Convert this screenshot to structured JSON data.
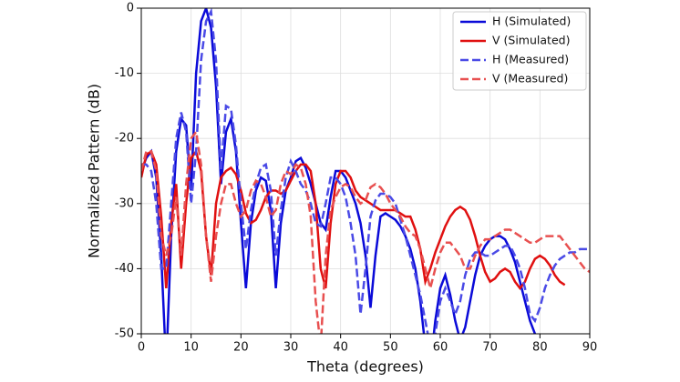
{
  "chart_data": {
    "type": "line",
    "xlabel": "Theta (degrees)",
    "ylabel": "Normalized Pattern (dB)",
    "x": [
      0,
      1,
      2,
      3,
      4,
      5,
      6,
      7,
      8,
      9,
      10,
      11,
      12,
      13,
      14,
      15,
      16,
      17,
      18,
      19,
      20,
      21,
      22,
      23,
      24,
      25,
      26,
      27,
      28,
      29,
      30,
      31,
      32,
      33,
      34,
      35,
      36,
      37,
      38,
      39,
      40,
      41,
      42,
      43,
      44,
      45,
      46,
      47,
      48,
      49,
      50,
      51,
      52,
      53,
      54,
      55,
      56,
      57,
      58,
      59,
      60,
      61,
      62,
      63,
      64,
      65,
      66,
      67,
      68,
      69,
      70,
      71,
      72,
      73,
      74,
      75,
      76,
      77,
      78,
      79,
      80,
      81,
      82,
      83,
      84,
      85,
      86,
      87,
      88,
      89,
      90
    ],
    "xlim": [
      0,
      90
    ],
    "xticks": [
      0,
      10,
      20,
      30,
      40,
      50,
      60,
      70,
      80,
      90
    ],
    "ylim": [
      -50,
      0
    ],
    "yticks": [
      -50,
      -40,
      -30,
      -20,
      -10,
      0
    ],
    "grid": true,
    "legend": "upper right",
    "series": [
      {
        "name": "H (Simulated)",
        "color": "#0a0ad8",
        "dash": "solid",
        "values": [
          -25,
          -23,
          -22,
          -26,
          -38,
          -55,
          -35,
          -22,
          -17,
          -18,
          -28,
          -10,
          -2,
          0,
          -3,
          -12,
          -27,
          -19,
          -17,
          -22,
          -33,
          -43,
          -33,
          -28,
          -26,
          -26.5,
          -31,
          -43,
          -33,
          -28,
          -26,
          -23.5,
          -23,
          -24.5,
          -27,
          -30,
          -33,
          -34,
          -29,
          -25,
          -25,
          -26,
          -28,
          -30,
          -33,
          -38,
          -46,
          -38,
          -32,
          -31.5,
          -32,
          -32.5,
          -33.5,
          -35,
          -37,
          -40,
          -45,
          -52,
          -55,
          -48,
          -43,
          -41,
          -44,
          -48,
          -51,
          -49,
          -45,
          -41,
          -38,
          -36.5,
          -35.5,
          -35,
          -35,
          -35.5,
          -37,
          -39,
          -42,
          -45,
          -48,
          -50,
          -52,
          null,
          null,
          null,
          null,
          null,
          null,
          null,
          null,
          null,
          null
        ]
      },
      {
        "name": "V (Simulated)",
        "color": "#e01010",
        "dash": "solid",
        "values": [
          -26,
          -22.5,
          -22,
          -24,
          -32,
          -43,
          -33,
          -27,
          -40,
          -30,
          -23,
          -22,
          -25,
          -35,
          -41,
          -30,
          -26,
          -25,
          -24.5,
          -25.5,
          -28,
          -31.5,
          -33,
          -32.5,
          -31,
          -29,
          -28,
          -28,
          -28.5,
          -28,
          -26.5,
          -25,
          -24,
          -24,
          -25,
          -30,
          -40,
          -43,
          -33,
          -27,
          -25,
          -25,
          -26,
          -28,
          -29,
          -29.5,
          -30,
          -30.5,
          -31,
          -31,
          -31,
          -31,
          -31.5,
          -32,
          -32,
          -34,
          -37,
          -42,
          -40,
          -37.5,
          -35.5,
          -33.5,
          -32,
          -31,
          -30.5,
          -31,
          -32.5,
          -35,
          -38,
          -40.5,
          -42,
          -41.5,
          -40.5,
          -40,
          -40.5,
          -42,
          -43,
          -42,
          -40,
          -38.5,
          -38,
          -38.5,
          -39.5,
          -41,
          -42,
          -42.5,
          null,
          null,
          null,
          null,
          null
        ]
      },
      {
        "name": "H (Measured)",
        "color": "#4a4ae6",
        "dash": "dashed",
        "values": [
          -24,
          -24,
          -25,
          -30,
          -40,
          -40,
          -30,
          -20,
          -16,
          -19,
          -30,
          -22,
          -8,
          -2,
          -0.5,
          -8,
          -25,
          -15,
          -15.5,
          -21,
          -30,
          -37,
          -31,
          -27,
          -24.5,
          -24,
          -28,
          -38,
          -31,
          -26,
          -23.5,
          -25,
          -27,
          -28,
          -30,
          -33,
          -33.5,
          -30,
          -26,
          -26,
          -27,
          -29,
          -33,
          -38,
          -47,
          -40,
          -32,
          -29.5,
          -28.5,
          -28.5,
          -29,
          -30,
          -32.5,
          -35,
          -38,
          -41,
          -44,
          -48,
          -52,
          -50,
          -45,
          -43,
          -45,
          -47,
          -45,
          -41,
          -38.5,
          -37.5,
          -37.5,
          -38,
          -38,
          -37.5,
          -37,
          -36.5,
          -36.5,
          -38,
          -40,
          -43,
          -47,
          -48,
          -46,
          -43,
          -41,
          -39.5,
          -38.5,
          -38,
          -37.5,
          -37.5,
          -37,
          -37,
          -37
        ]
      },
      {
        "name": "V (Measured)",
        "color": "#e85050",
        "dash": "dashed",
        "values": [
          -25,
          -22,
          -22,
          -25,
          -35,
          -38,
          -35,
          -29,
          -38,
          -27,
          -20,
          -19,
          -24,
          -35,
          -42,
          -35,
          -30,
          -27,
          -27,
          -30,
          -32,
          -31,
          -28,
          -26.5,
          -27,
          -29,
          -32,
          -31,
          -27,
          -25,
          -25.5,
          -24,
          -24.5,
          -27,
          -32,
          -45,
          -52,
          -38,
          -31,
          -29,
          -27.5,
          -27,
          -27.5,
          -29,
          -30,
          -29.5,
          -27.5,
          -27,
          -27.5,
          -28.5,
          -30,
          -31,
          -32,
          -33.5,
          -34.5,
          -35,
          -37,
          -40,
          -43,
          -40,
          -37.5,
          -36,
          -36,
          -37,
          -38,
          -40,
          -40,
          -38,
          -36.5,
          -35.5,
          -35.5,
          -35,
          -34.5,
          -34,
          -34,
          -34.5,
          -35,
          -35.5,
          -36,
          -36,
          -35.5,
          -35,
          -35,
          -35,
          -35,
          -36,
          -37,
          -38,
          -39,
          -40,
          -40.5
        ]
      }
    ]
  }
}
